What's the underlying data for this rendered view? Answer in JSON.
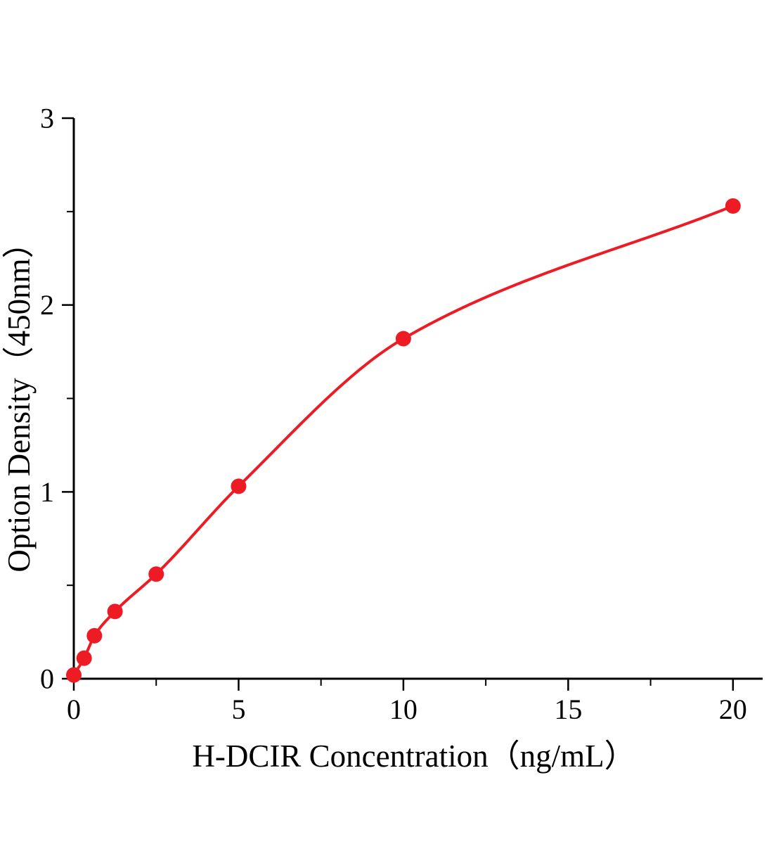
{
  "chart_data": {
    "type": "scatter",
    "title": "",
    "xlabel": "H-DCIR Concentration（ng/mL）",
    "ylabel": "Option Density（450nm）",
    "x": [
      0,
      0.313,
      0.625,
      1.25,
      2.5,
      5,
      10,
      20
    ],
    "y": [
      0.02,
      0.11,
      0.23,
      0.36,
      0.56,
      1.03,
      1.82,
      2.53
    ],
    "curve": "smooth-fit-through-points",
    "xlim": [
      0,
      20.9
    ],
    "ylim": [
      0,
      3
    ],
    "xticks": [
      0,
      5,
      10,
      15,
      20
    ],
    "yticks": [
      0,
      1,
      2,
      3
    ],
    "xtick_labels": [
      "0",
      "5",
      "10",
      "15",
      "20"
    ],
    "ytick_labels": [
      "0",
      "1",
      "2",
      "3"
    ],
    "x_minor_step": 2.5,
    "y_minor_step": 0.5,
    "marker_color": "#ed1c24",
    "line_color": "#ed1c24",
    "axis_color": "#000000",
    "background_color": "#ffffff",
    "grid": false,
    "legend": "none"
  }
}
